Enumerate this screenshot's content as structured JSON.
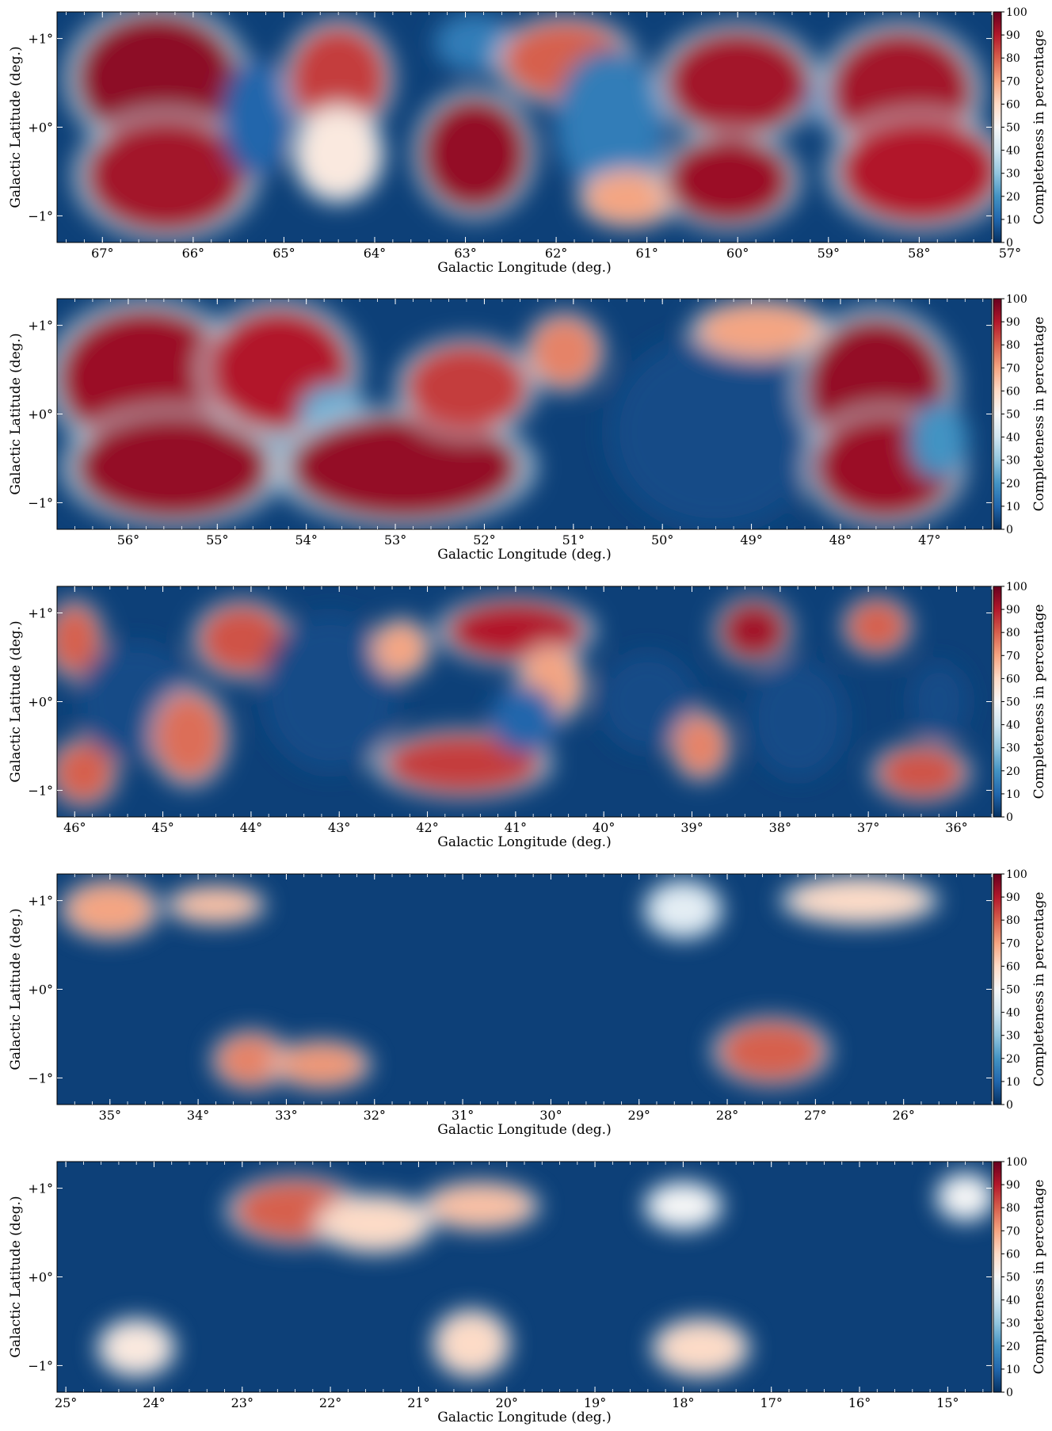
{
  "chart_data": [
    {
      "type": "heatmap",
      "xlabel": "Galactic Longitude (deg.)",
      "ylabel": "Galactic Latitude (deg.)",
      "colorbar_label": "Completeness in percentage",
      "xlim": [
        67.5,
        57.2
      ],
      "ylim": [
        -1.3,
        1.3
      ],
      "xticks": [
        67,
        66,
        65,
        64,
        63,
        62,
        61,
        60,
        59,
        58,
        57
      ],
      "xtick_labels": [
        "67°",
        "66°",
        "65°",
        "64°",
        "63°",
        "62°",
        "61°",
        "60°",
        "59°",
        "58°",
        "57°"
      ],
      "ytick_labels": [
        "+1°",
        "+0°",
        "−1°"
      ],
      "regions": [
        {
          "x": 66.4,
          "y": 0.55,
          "rx": 0.9,
          "ry": 0.75,
          "value": 95
        },
        {
          "x": 66.3,
          "y": -0.55,
          "rx": 0.9,
          "ry": 0.65,
          "value": 92
        },
        {
          "x": 65.3,
          "y": 0.1,
          "rx": 0.35,
          "ry": 0.6,
          "value": 10
        },
        {
          "x": 64.4,
          "y": 0.55,
          "rx": 0.55,
          "ry": 0.6,
          "value": 85
        },
        {
          "x": 64.4,
          "y": -0.3,
          "rx": 0.45,
          "ry": 0.5,
          "value": 55
        },
        {
          "x": 62.9,
          "y": -0.3,
          "rx": 0.6,
          "ry": 0.65,
          "value": 94
        },
        {
          "x": 62.9,
          "y": 0.95,
          "rx": 0.4,
          "ry": 0.3,
          "value": 15
        },
        {
          "x": 61.9,
          "y": 0.75,
          "rx": 0.7,
          "ry": 0.45,
          "value": 80
        },
        {
          "x": 61.4,
          "y": 0.05,
          "rx": 0.55,
          "ry": 0.75,
          "value": 15
        },
        {
          "x": 61.2,
          "y": -0.8,
          "rx": 0.5,
          "ry": 0.3,
          "value": 70
        },
        {
          "x": 60.0,
          "y": 0.5,
          "rx": 0.8,
          "ry": 0.6,
          "value": 92
        },
        {
          "x": 60.1,
          "y": -0.6,
          "rx": 0.7,
          "ry": 0.5,
          "value": 93
        },
        {
          "x": 58.9,
          "y": 0.3,
          "rx": 0.3,
          "ry": 0.3,
          "value": 15
        },
        {
          "x": 58.2,
          "y": 0.4,
          "rx": 0.8,
          "ry": 0.7,
          "value": 92
        },
        {
          "x": 58.0,
          "y": -0.5,
          "rx": 0.9,
          "ry": 0.6,
          "value": 90
        }
      ]
    },
    {
      "type": "heatmap",
      "xlabel": "Galactic Longitude (deg.)",
      "ylabel": "Galactic Latitude (deg.)",
      "colorbar_label": "Completeness in percentage",
      "xlim": [
        56.8,
        46.3
      ],
      "ylim": [
        -1.3,
        1.3
      ],
      "xticks": [
        56,
        55,
        54,
        53,
        52,
        51,
        50,
        49,
        48,
        47
      ],
      "xtick_labels": [
        "56°",
        "55°",
        "54°",
        "53°",
        "52°",
        "51°",
        "50°",
        "49°",
        "48°",
        "47°"
      ],
      "ytick_labels": [
        "+1°",
        "+0°",
        "−1°"
      ],
      "regions": [
        {
          "x": 55.8,
          "y": 0.4,
          "rx": 1.0,
          "ry": 0.8,
          "value": 93
        },
        {
          "x": 55.5,
          "y": -0.6,
          "rx": 1.1,
          "ry": 0.6,
          "value": 94
        },
        {
          "x": 54.3,
          "y": 0.5,
          "rx": 0.8,
          "ry": 0.7,
          "value": 90
        },
        {
          "x": 53.7,
          "y": 0.0,
          "rx": 0.35,
          "ry": 0.3,
          "value": 25
        },
        {
          "x": 52.9,
          "y": -0.6,
          "rx": 1.3,
          "ry": 0.6,
          "value": 94
        },
        {
          "x": 52.2,
          "y": 0.3,
          "rx": 0.7,
          "ry": 0.5,
          "value": 85
        },
        {
          "x": 51.1,
          "y": 0.7,
          "rx": 0.4,
          "ry": 0.4,
          "value": 75
        },
        {
          "x": 49.4,
          "y": -0.2,
          "rx": 1.1,
          "ry": 1.0,
          "value": 5
        },
        {
          "x": 48.9,
          "y": 0.95,
          "rx": 0.7,
          "ry": 0.3,
          "value": 70
        },
        {
          "x": 47.6,
          "y": 0.3,
          "rx": 0.8,
          "ry": 0.8,
          "value": 94
        },
        {
          "x": 47.5,
          "y": -0.6,
          "rx": 0.8,
          "ry": 0.6,
          "value": 93
        },
        {
          "x": 46.9,
          "y": -0.3,
          "rx": 0.3,
          "ry": 0.4,
          "value": 20
        }
      ]
    },
    {
      "type": "heatmap",
      "xlabel": "Galactic Longitude (deg.)",
      "ylabel": "Galactic Latitude (deg.)",
      "colorbar_label": "Completeness in percentage",
      "xlim": [
        46.2,
        35.6
      ],
      "ylim": [
        -1.3,
        1.3
      ],
      "xticks": [
        46,
        45,
        44,
        43,
        42,
        41,
        40,
        39,
        38,
        37,
        36
      ],
      "xtick_labels": [
        "46°",
        "45°",
        "44°",
        "43°",
        "42°",
        "41°",
        "40°",
        "39°",
        "38°",
        "37°",
        "36°"
      ],
      "ytick_labels": [
        "+1°",
        "+0°",
        "−1°"
      ],
      "regions": [
        {
          "x": 46.0,
          "y": 0.7,
          "rx": 0.3,
          "ry": 0.4,
          "value": 80
        },
        {
          "x": 45.9,
          "y": -0.8,
          "rx": 0.35,
          "ry": 0.35,
          "value": 80
        },
        {
          "x": 45.3,
          "y": 0.0,
          "rx": 0.6,
          "ry": 0.6,
          "value": 5
        },
        {
          "x": 44.7,
          "y": -0.4,
          "rx": 0.4,
          "ry": 0.5,
          "value": 78
        },
        {
          "x": 44.1,
          "y": 0.7,
          "rx": 0.5,
          "ry": 0.4,
          "value": 82
        },
        {
          "x": 43.1,
          "y": 0.1,
          "rx": 0.7,
          "ry": 0.8,
          "value": 5
        },
        {
          "x": 42.3,
          "y": 0.6,
          "rx": 0.3,
          "ry": 0.3,
          "value": 70
        },
        {
          "x": 41.6,
          "y": -0.7,
          "rx": 0.9,
          "ry": 0.35,
          "value": 85
        },
        {
          "x": 41.0,
          "y": 0.8,
          "rx": 0.8,
          "ry": 0.35,
          "value": 90
        },
        {
          "x": 40.6,
          "y": 0.2,
          "rx": 0.35,
          "ry": 0.4,
          "value": 70
        },
        {
          "x": 40.9,
          "y": -0.2,
          "rx": 0.35,
          "ry": 0.35,
          "value": 10
        },
        {
          "x": 39.5,
          "y": 0.0,
          "rx": 0.5,
          "ry": 0.5,
          "value": 5
        },
        {
          "x": 38.9,
          "y": -0.5,
          "rx": 0.3,
          "ry": 0.35,
          "value": 75
        },
        {
          "x": 38.3,
          "y": 0.8,
          "rx": 0.4,
          "ry": 0.35,
          "value": 92
        },
        {
          "x": 37.8,
          "y": -0.2,
          "rx": 0.5,
          "ry": 0.6,
          "value": 5
        },
        {
          "x": 36.9,
          "y": 0.85,
          "rx": 0.35,
          "ry": 0.3,
          "value": 80
        },
        {
          "x": 36.4,
          "y": -0.8,
          "rx": 0.5,
          "ry": 0.3,
          "value": 82
        },
        {
          "x": 36.2,
          "y": 0.0,
          "rx": 0.3,
          "ry": 0.4,
          "value": 5
        }
      ]
    },
    {
      "type": "heatmap",
      "xlabel": "Galactic Longitude (deg.)",
      "ylabel": "Galactic Latitude (deg.)",
      "colorbar_label": "Completeness in percentage",
      "xlim": [
        35.6,
        25.0
      ],
      "ylim": [
        -1.3,
        1.3
      ],
      "xticks": [
        35,
        34,
        33,
        32,
        31,
        30,
        29,
        28,
        27,
        26
      ],
      "xtick_labels": [
        "35°",
        "34°",
        "33°",
        "32°",
        "31°",
        "30°",
        "29°",
        "28°",
        "27°",
        "26°"
      ],
      "ytick_labels": [
        "+1°",
        "+0°",
        "−1°"
      ],
      "regions": [
        {
          "x": 35.0,
          "y": 0.9,
          "rx": 0.5,
          "ry": 0.3,
          "value": 70
        },
        {
          "x": 33.8,
          "y": 0.95,
          "rx": 0.5,
          "ry": 0.2,
          "value": 65
        },
        {
          "x": 33.4,
          "y": -0.8,
          "rx": 0.4,
          "ry": 0.3,
          "value": 75
        },
        {
          "x": 32.6,
          "y": -0.85,
          "rx": 0.5,
          "ry": 0.25,
          "value": 72
        },
        {
          "x": 28.5,
          "y": 0.9,
          "rx": 0.4,
          "ry": 0.3,
          "value": 45
        },
        {
          "x": 27.5,
          "y": -0.7,
          "rx": 0.6,
          "ry": 0.35,
          "value": 80
        },
        {
          "x": 26.5,
          "y": 1.0,
          "rx": 0.8,
          "ry": 0.25,
          "value": 60
        }
      ]
    },
    {
      "type": "heatmap",
      "xlabel": "Galactic Longitude (deg.)",
      "ylabel": "Galactic Latitude (deg.)",
      "colorbar_label": "Completeness in percentage",
      "xlim": [
        25.1,
        14.5
      ],
      "ylim": [
        -1.3,
        1.3
      ],
      "xticks": [
        25,
        24,
        23,
        22,
        21,
        20,
        19,
        18,
        17,
        16,
        15
      ],
      "xtick_labels": [
        "25°",
        "24°",
        "23°",
        "22°",
        "21°",
        "20°",
        "19°",
        "18°",
        "17°",
        "16°",
        "15°"
      ],
      "ytick_labels": [
        "+1°",
        "+0°",
        "−1°"
      ],
      "regions": [
        {
          "x": 22.4,
          "y": 0.75,
          "rx": 0.7,
          "ry": 0.35,
          "value": 80
        },
        {
          "x": 21.5,
          "y": 0.6,
          "rx": 0.6,
          "ry": 0.3,
          "value": 60
        },
        {
          "x": 20.3,
          "y": 0.8,
          "rx": 0.6,
          "ry": 0.25,
          "value": 65
        },
        {
          "x": 24.2,
          "y": -0.8,
          "rx": 0.4,
          "ry": 0.3,
          "value": 55
        },
        {
          "x": 20.4,
          "y": -0.75,
          "rx": 0.4,
          "ry": 0.35,
          "value": 60
        },
        {
          "x": 17.8,
          "y": -0.8,
          "rx": 0.5,
          "ry": 0.3,
          "value": 60
        },
        {
          "x": 18.0,
          "y": 0.8,
          "rx": 0.4,
          "ry": 0.25,
          "value": 50
        },
        {
          "x": 14.8,
          "y": 0.9,
          "rx": 0.3,
          "ry": 0.25,
          "value": 50
        }
      ]
    }
  ],
  "colorbar_ticks": [
    "0",
    "10",
    "20",
    "30",
    "40",
    "50",
    "60",
    "70",
    "80",
    "90",
    "100"
  ]
}
